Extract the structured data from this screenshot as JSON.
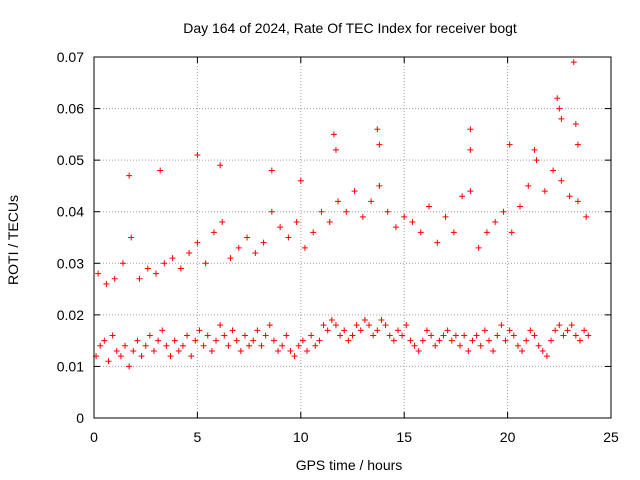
{
  "chart_data": {
    "type": "scatter",
    "title": "Day 164 of 2024, Rate Of TEC Index for receiver bogt",
    "xlabel": "GPS time / hours",
    "ylabel": "ROTI / TECUs",
    "xlim": [
      0,
      25
    ],
    "ylim": [
      0,
      0.07
    ],
    "xticks": [
      0,
      5,
      10,
      15,
      20,
      25
    ],
    "yticks": [
      0,
      0.01,
      0.02,
      0.03,
      0.04,
      0.05,
      0.06,
      0.07
    ],
    "xtick_labels": [
      "0",
      "5",
      "10",
      "15",
      "20",
      "25"
    ],
    "ytick_labels": [
      "0",
      "0.01",
      "0.02",
      "0.03",
      "0.04",
      "0.05",
      "0.06",
      "0.07"
    ],
    "grid": true,
    "marker": "+",
    "marker_color": "#ff0000",
    "series": [
      {
        "name": "ROTI",
        "x": [
          0.1,
          0.3,
          0.5,
          0.7,
          0.9,
          1.1,
          1.3,
          1.5,
          1.7,
          1.9,
          2.1,
          2.3,
          2.5,
          2.7,
          2.9,
          3.1,
          3.3,
          3.5,
          3.7,
          3.9,
          4.1,
          4.3,
          4.5,
          4.7,
          4.9,
          5.1,
          5.3,
          5.5,
          5.7,
          5.9,
          6.1,
          6.3,
          6.5,
          6.7,
          6.9,
          7.1,
          7.3,
          7.5,
          7.7,
          7.9,
          8.1,
          8.3,
          8.5,
          8.7,
          8.9,
          9.1,
          9.3,
          9.5,
          9.7,
          9.9,
          10.1,
          10.3,
          10.5,
          10.7,
          10.9,
          11.1,
          11.3,
          11.5,
          11.7,
          11.9,
          12.1,
          12.3,
          12.5,
          12.7,
          12.9,
          13.1,
          13.3,
          13.5,
          13.7,
          13.9,
          14.1,
          14.3,
          14.5,
          14.7,
          14.9,
          15.1,
          15.3,
          15.5,
          15.7,
          15.9,
          16.1,
          16.3,
          16.5,
          16.7,
          16.9,
          17.1,
          17.3,
          17.5,
          17.7,
          17.9,
          18.1,
          18.3,
          18.5,
          18.7,
          18.9,
          19.1,
          19.3,
          19.5,
          19.7,
          19.9,
          20.1,
          20.3,
          20.5,
          20.7,
          20.9,
          21.1,
          21.3,
          21.5,
          21.7,
          21.9,
          22.1,
          22.3,
          22.5,
          22.7,
          22.9,
          23.1,
          23.3,
          23.5,
          23.7,
          23.9,
          1.7,
          3.2,
          5.0,
          6.1,
          8.6,
          10.0,
          11.6,
          11.7,
          13.7,
          13.8,
          18.2,
          18.2,
          20.1,
          21.3,
          22.4,
          22.5,
          22.6,
          23.2,
          23.3,
          23.4,
          0.2,
          0.6,
          1.0,
          1.4,
          1.8,
          2.2,
          2.6,
          3.0,
          3.4,
          3.8,
          4.2,
          4.6,
          5.0,
          5.4,
          5.8,
          6.2,
          6.6,
          7.0,
          7.4,
          7.8,
          8.2,
          8.6,
          9.0,
          9.4,
          9.8,
          10.2,
          10.6,
          11.0,
          11.4,
          11.8,
          12.2,
          12.6,
          13.0,
          13.4,
          13.8,
          14.2,
          14.6,
          15.0,
          15.4,
          15.8,
          16.2,
          16.6,
          17.0,
          17.4,
          17.8,
          18.2,
          18.6,
          19.0,
          19.4,
          19.8,
          20.2,
          20.6,
          21.0,
          21.4,
          21.8,
          22.2,
          22.6,
          23.0,
          23.4,
          23.8
        ],
        "y": [
          0.012,
          0.014,
          0.015,
          0.011,
          0.016,
          0.013,
          0.012,
          0.014,
          0.01,
          0.013,
          0.015,
          0.012,
          0.014,
          0.016,
          0.013,
          0.015,
          0.017,
          0.014,
          0.012,
          0.015,
          0.013,
          0.014,
          0.016,
          0.012,
          0.015,
          0.017,
          0.014,
          0.016,
          0.013,
          0.015,
          0.018,
          0.016,
          0.014,
          0.017,
          0.015,
          0.013,
          0.016,
          0.014,
          0.015,
          0.017,
          0.014,
          0.016,
          0.018,
          0.015,
          0.013,
          0.014,
          0.016,
          0.013,
          0.012,
          0.014,
          0.015,
          0.013,
          0.016,
          0.014,
          0.015,
          0.018,
          0.017,
          0.019,
          0.018,
          0.016,
          0.017,
          0.015,
          0.016,
          0.018,
          0.017,
          0.019,
          0.018,
          0.016,
          0.017,
          0.019,
          0.018,
          0.016,
          0.015,
          0.017,
          0.016,
          0.018,
          0.015,
          0.014,
          0.013,
          0.015,
          0.017,
          0.016,
          0.014,
          0.015,
          0.016,
          0.017,
          0.015,
          0.016,
          0.014,
          0.016,
          0.013,
          0.015,
          0.016,
          0.014,
          0.017,
          0.015,
          0.013,
          0.016,
          0.018,
          0.015,
          0.017,
          0.016,
          0.014,
          0.013,
          0.015,
          0.017,
          0.016,
          0.014,
          0.013,
          0.012,
          0.015,
          0.017,
          0.018,
          0.016,
          0.017,
          0.018,
          0.016,
          0.015,
          0.017,
          0.016,
          0.047,
          0.048,
          0.051,
          0.049,
          0.048,
          0.046,
          0.055,
          0.052,
          0.056,
          0.053,
          0.056,
          0.052,
          0.053,
          0.052,
          0.062,
          0.06,
          0.058,
          0.069,
          0.057,
          0.053,
          0.028,
          0.026,
          0.027,
          0.03,
          0.035,
          0.027,
          0.029,
          0.028,
          0.03,
          0.031,
          0.029,
          0.032,
          0.034,
          0.03,
          0.036,
          0.038,
          0.031,
          0.033,
          0.035,
          0.032,
          0.034,
          0.04,
          0.037,
          0.035,
          0.038,
          0.033,
          0.036,
          0.04,
          0.038,
          0.042,
          0.04,
          0.044,
          0.039,
          0.042,
          0.045,
          0.04,
          0.037,
          0.039,
          0.038,
          0.036,
          0.041,
          0.034,
          0.039,
          0.036,
          0.043,
          0.044,
          0.033,
          0.036,
          0.038,
          0.04,
          0.036,
          0.041,
          0.045,
          0.05,
          0.044,
          0.048,
          0.046,
          0.043,
          0.042,
          0.039
        ]
      }
    ]
  }
}
